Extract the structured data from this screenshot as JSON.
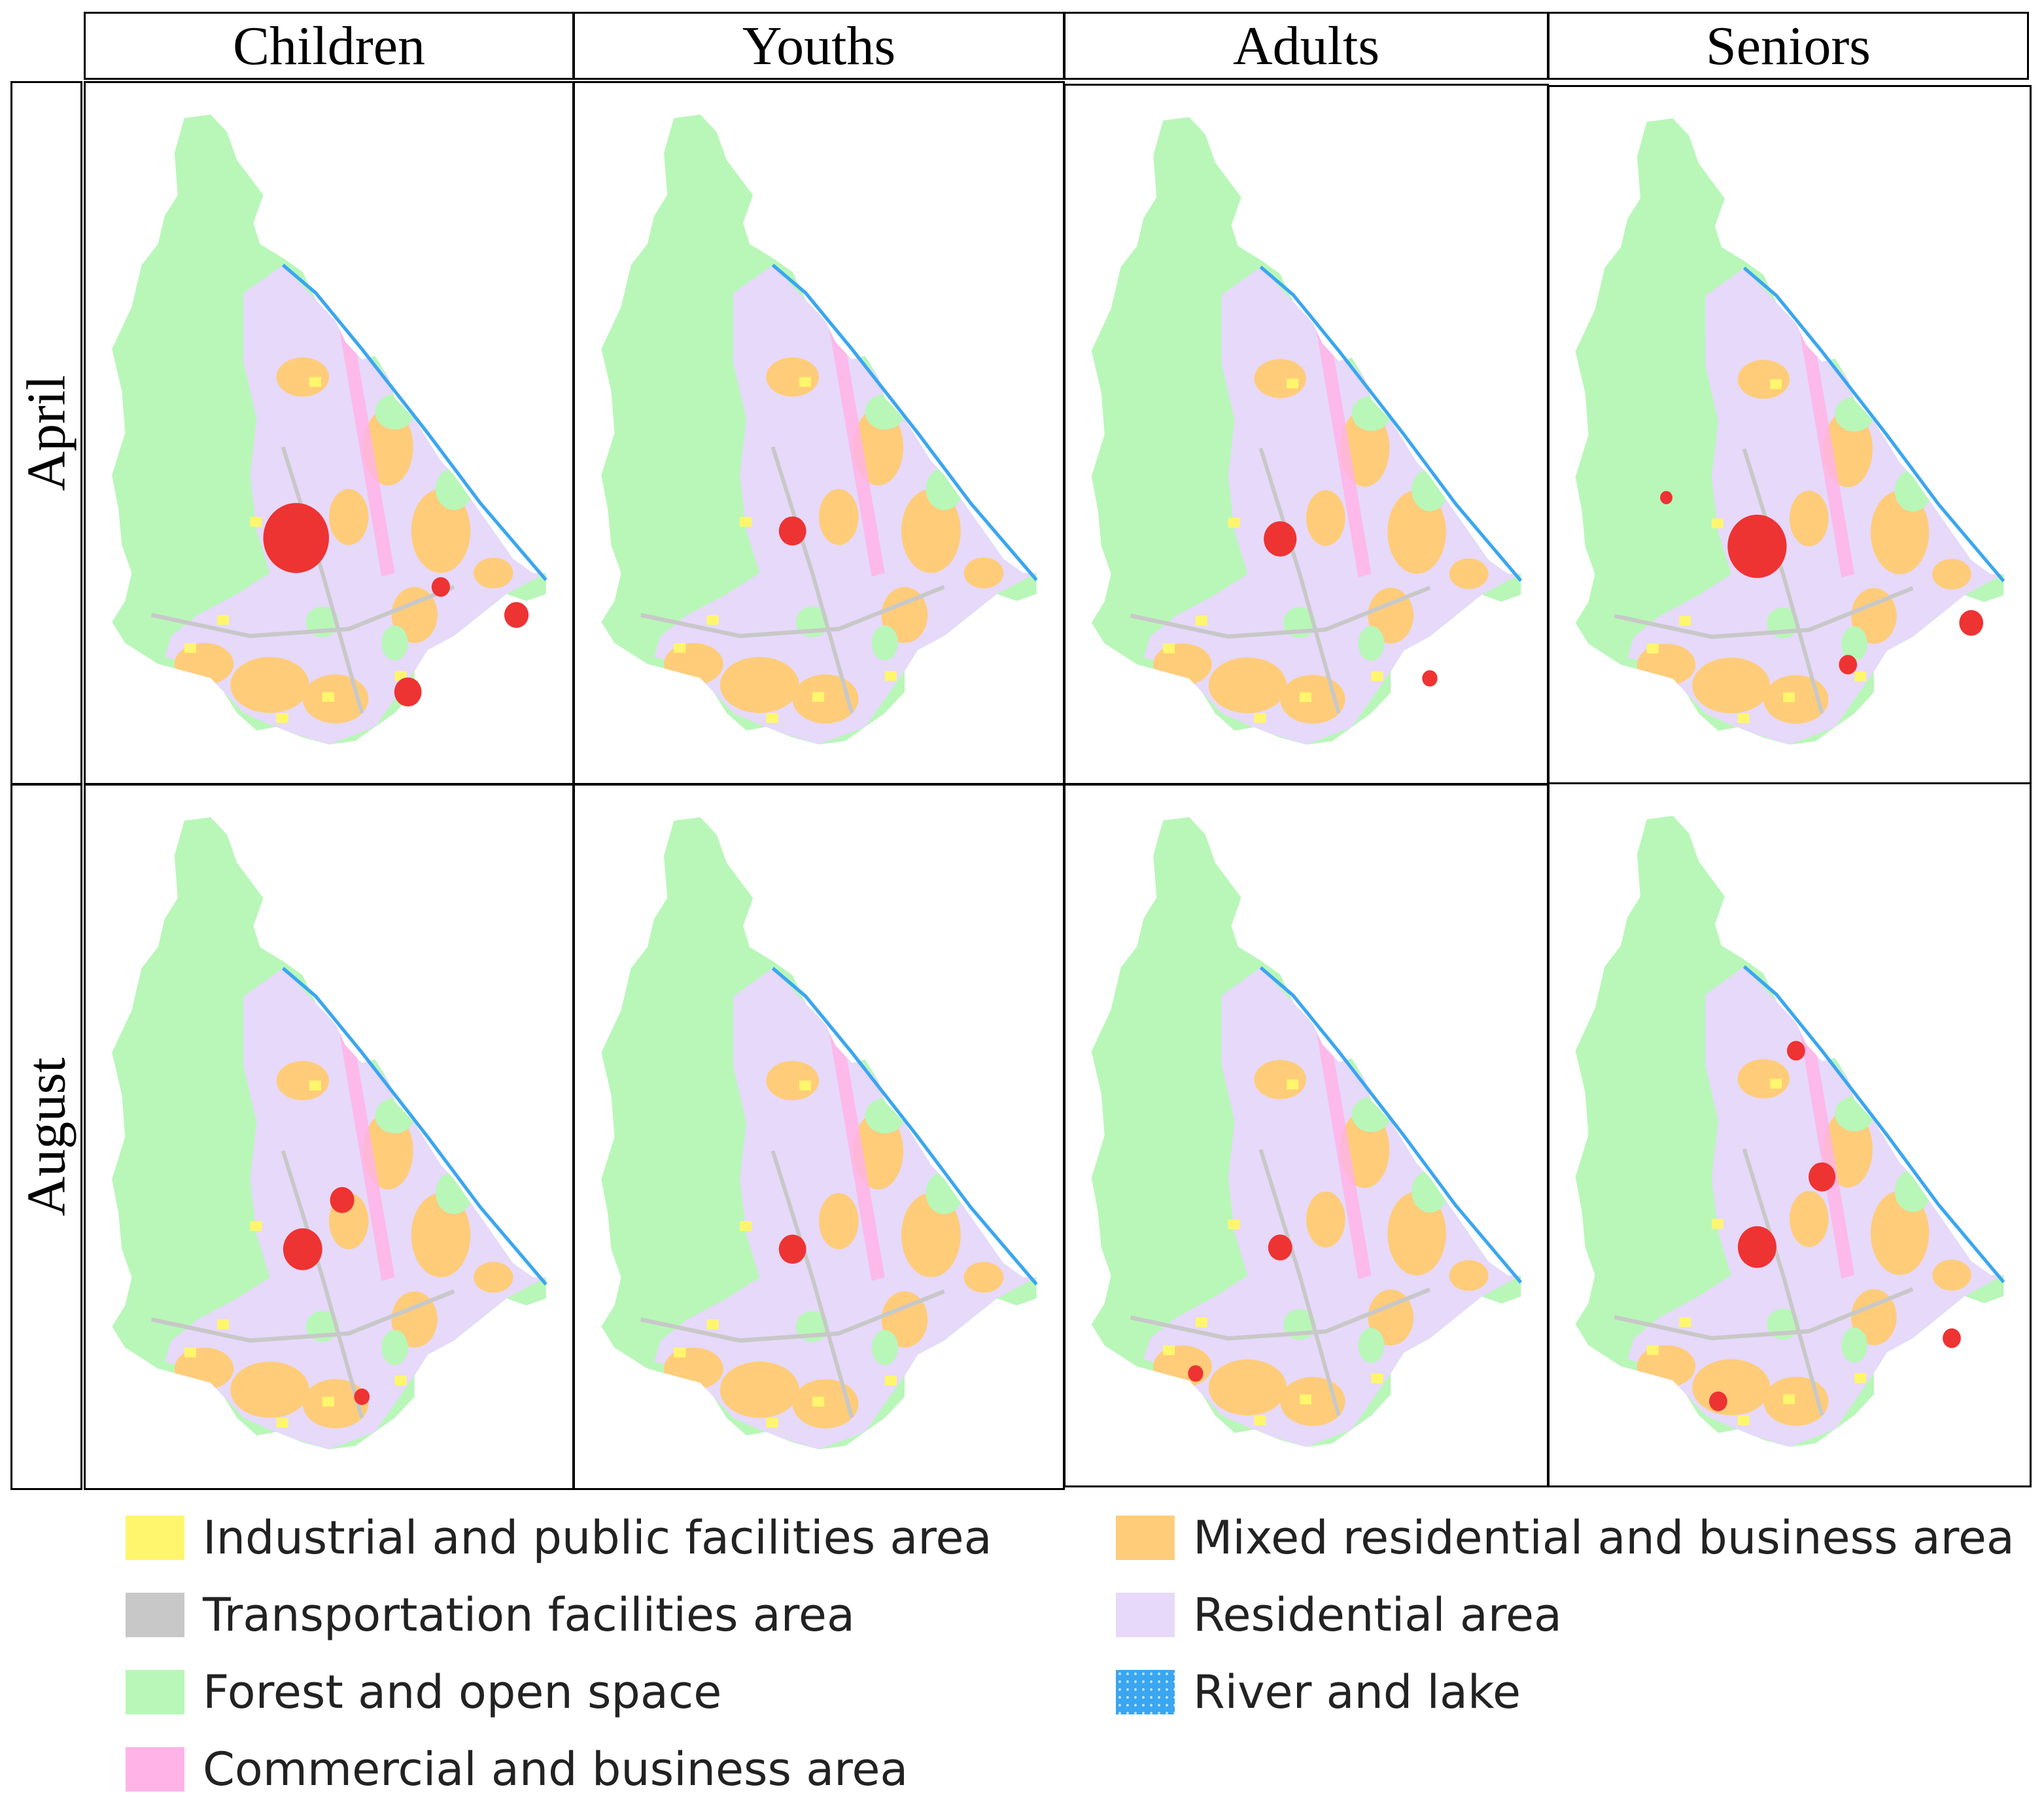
{
  "columns": [
    "Children",
    "Youths",
    "Adults",
    "Seniors"
  ],
  "rows": [
    "April",
    "August"
  ],
  "legend": [
    {
      "label": "Industrial and public facilities area",
      "color": "#fff66e"
    },
    {
      "label": "Transportation facilities area",
      "color": "#c8c8c8"
    },
    {
      "label": "Forest and open space",
      "color": "#b8f7b8"
    },
    {
      "label": "Commercial and business area",
      "color": "#ffb3e6"
    },
    {
      "label": "Mixed residential and business area",
      "color": "#ffcc7a"
    },
    {
      "label": "Residential area",
      "color": "#e6d9fa"
    },
    {
      "label": "River and lake",
      "color": "#3aa6f0"
    }
  ],
  "hotspot_color": "#ee3333"
}
